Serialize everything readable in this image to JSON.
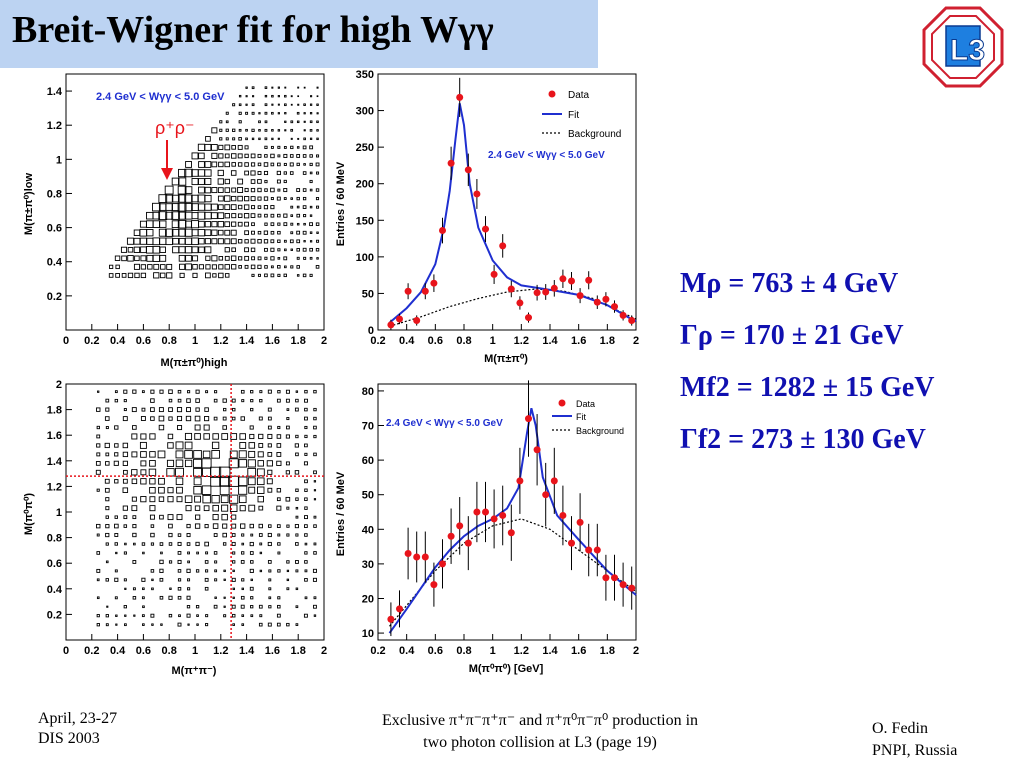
{
  "slide": {
    "title": "Breit-Wigner fit for high Wγγ",
    "logo_text": "L3"
  },
  "params": [
    {
      "label": "Mρ",
      "text": "= 763 ± 4 GeV"
    },
    {
      "label": "Γρ",
      "text": "= 170 ± 21 GeV"
    },
    {
      "label": "Mf2",
      "text": "= 1282 ± 15 GeV"
    },
    {
      "label": "Γf2",
      "text": "= 273 ± 130 GeV"
    }
  ],
  "footer": {
    "left_line1": "April, 23-27",
    "left_line2": "DIS 2003",
    "center_line1": "Exclusive π⁺π⁻π⁺π⁻ and π⁺π⁰π⁻π⁰ production in",
    "center_line2": "two photon collision at L3 (page 19)",
    "right_line1": "O. Fedin",
    "right_line2": "PNPI, Russia"
  },
  "colors": {
    "data": "#e8141b",
    "fit": "#1f2fd0",
    "background": "#000000",
    "accent_text": "#1010b0",
    "title_bg": "#bcd3f2"
  },
  "chart_data": [
    {
      "type": "scatter",
      "subtype": "box-2d-histogram",
      "xlabel": "M(π±π⁰)high",
      "ylabel": "M(π±π⁰)low",
      "xlim": [
        0,
        2
      ],
      "ylim": [
        0,
        1.5
      ],
      "xticks": [
        "0",
        "0.2",
        "0.4",
        "0.6",
        "0.8",
        "1",
        "1.2",
        "1.4",
        "1.6",
        "1.8",
        "2"
      ],
      "yticks": [
        "0.2",
        "0.4",
        "0.6",
        "0.8",
        "1",
        "1.2",
        "1.4"
      ],
      "annotation": "2.4 GeV < Wγγ < 5.0 GeV",
      "arrow_label": "ρ⁺ρ⁻"
    },
    {
      "type": "line",
      "xlabel": "M(π±π⁰)",
      "ylabel": "Entries / 60 MeV",
      "xlim": [
        0.2,
        2
      ],
      "ylim": [
        0,
        350
      ],
      "xticks": [
        "0.2",
        "0.4",
        "0.6",
        "0.8",
        "1",
        "1.2",
        "1.4",
        "1.6",
        "1.8",
        "2"
      ],
      "yticks": [
        "0",
        "50",
        "100",
        "150",
        "200",
        "250",
        "300",
        "350"
      ],
      "annotation": "2.4 GeV < Wγγ < 5.0 GeV",
      "legend": [
        "Data",
        "Fit",
        "Background"
      ],
      "legend_position": "top-right",
      "data_points": [
        [
          0.29,
          7
        ],
        [
          0.35,
          15
        ],
        [
          0.41,
          53
        ],
        [
          0.47,
          13
        ],
        [
          0.53,
          53
        ],
        [
          0.59,
          64
        ],
        [
          0.65,
          136
        ],
        [
          0.71,
          228
        ],
        [
          0.77,
          318
        ],
        [
          0.83,
          219
        ],
        [
          0.89,
          186
        ],
        [
          0.95,
          138
        ],
        [
          1.01,
          76
        ],
        [
          1.07,
          115
        ],
        [
          1.13,
          56
        ],
        [
          1.19,
          37
        ],
        [
          1.25,
          17
        ],
        [
          1.31,
          51
        ],
        [
          1.37,
          52
        ],
        [
          1.43,
          57
        ],
        [
          1.49,
          70
        ],
        [
          1.55,
          67
        ],
        [
          1.61,
          47
        ],
        [
          1.67,
          68
        ],
        [
          1.73,
          38
        ],
        [
          1.79,
          42
        ],
        [
          1.85,
          32
        ],
        [
          1.91,
          20
        ],
        [
          1.97,
          13
        ]
      ],
      "fit_points": [
        [
          0.28,
          10
        ],
        [
          0.4,
          30
        ],
        [
          0.5,
          52
        ],
        [
          0.6,
          90
        ],
        [
          0.66,
          140
        ],
        [
          0.7,
          190
        ],
        [
          0.74,
          260
        ],
        [
          0.77,
          310
        ],
        [
          0.8,
          280
        ],
        [
          0.84,
          200
        ],
        [
          0.9,
          140
        ],
        [
          1.0,
          95
        ],
        [
          1.1,
          72
        ],
        [
          1.2,
          61
        ],
        [
          1.4,
          55
        ],
        [
          1.6,
          48
        ],
        [
          1.8,
          34
        ],
        [
          1.95,
          17
        ],
        [
          2.0,
          12
        ]
      ],
      "background_points": [
        [
          0.28,
          5
        ],
        [
          0.5,
          18
        ],
        [
          0.7,
          32
        ],
        [
          0.9,
          43
        ],
        [
          1.1,
          52
        ],
        [
          1.3,
          56
        ],
        [
          1.5,
          53
        ],
        [
          1.7,
          43
        ],
        [
          1.9,
          24
        ],
        [
          2.0,
          15
        ]
      ]
    },
    {
      "type": "scatter",
      "subtype": "box-2d-histogram",
      "xlabel": "M(π⁺π⁻)",
      "ylabel": "M(π⁰π⁰)",
      "xlim": [
        0,
        2
      ],
      "ylim": [
        0,
        2
      ],
      "xticks": [
        "0",
        "0.2",
        "0.4",
        "0.6",
        "0.8",
        "1",
        "1.2",
        "1.4",
        "1.6",
        "1.8",
        "2"
      ],
      "yticks": [
        "0.2",
        "0.4",
        "0.6",
        "0.8",
        "1",
        "1.2",
        "1.4",
        "1.6",
        "1.8",
        "2"
      ],
      "marker_lines": {
        "x": 1.28,
        "y": 1.28
      }
    },
    {
      "type": "line",
      "xlabel": "M(π⁰π⁰) [GeV]",
      "ylabel": "Entries / 60 MeV",
      "xlim": [
        0.2,
        2
      ],
      "ylim": [
        8,
        82
      ],
      "xticks": [
        "0.2",
        "0.4",
        "0.6",
        "0.8",
        "1",
        "1.2",
        "1.4",
        "1.6",
        "1.8",
        "2"
      ],
      "yticks": [
        "10",
        "20",
        "30",
        "40",
        "50",
        "60",
        "70",
        "80"
      ],
      "annotation": "2.4 GeV < Wγγ < 5.0 GeV",
      "legend": [
        "Data",
        "Fit",
        "Background"
      ],
      "legend_position": "top-right",
      "data_points": [
        [
          0.29,
          14
        ],
        [
          0.35,
          17
        ],
        [
          0.41,
          33
        ],
        [
          0.47,
          32
        ],
        [
          0.53,
          32
        ],
        [
          0.59,
          24
        ],
        [
          0.65,
          30
        ],
        [
          0.71,
          38
        ],
        [
          0.77,
          41
        ],
        [
          0.83,
          36
        ],
        [
          0.89,
          45
        ],
        [
          0.95,
          45
        ],
        [
          1.01,
          43
        ],
        [
          1.07,
          44
        ],
        [
          1.13,
          39
        ],
        [
          1.19,
          54
        ],
        [
          1.25,
          72
        ],
        [
          1.31,
          63
        ],
        [
          1.37,
          50
        ],
        [
          1.43,
          54
        ],
        [
          1.49,
          44
        ],
        [
          1.55,
          36
        ],
        [
          1.61,
          42
        ],
        [
          1.67,
          34
        ],
        [
          1.73,
          34
        ],
        [
          1.79,
          26
        ],
        [
          1.85,
          26
        ],
        [
          1.91,
          24
        ],
        [
          1.97,
          23
        ]
      ],
      "fit_points": [
        [
          0.28,
          10
        ],
        [
          0.4,
          17
        ],
        [
          0.5,
          23
        ],
        [
          0.6,
          29
        ],
        [
          0.7,
          34
        ],
        [
          0.8,
          38
        ],
        [
          0.9,
          41
        ],
        [
          1.0,
          43
        ],
        [
          1.1,
          46
        ],
        [
          1.18,
          52
        ],
        [
          1.24,
          68
        ],
        [
          1.27,
          75
        ],
        [
          1.3,
          70
        ],
        [
          1.35,
          55
        ],
        [
          1.45,
          44
        ],
        [
          1.6,
          37
        ],
        [
          1.8,
          28
        ],
        [
          2.0,
          21
        ]
      ],
      "background_points": [
        [
          0.28,
          12
        ],
        [
          0.4,
          18
        ],
        [
          0.6,
          28
        ],
        [
          0.8,
          36
        ],
        [
          1.0,
          41
        ],
        [
          1.2,
          43
        ],
        [
          1.4,
          40
        ],
        [
          1.6,
          34
        ],
        [
          1.8,
          28
        ],
        [
          2.0,
          22
        ]
      ]
    }
  ]
}
